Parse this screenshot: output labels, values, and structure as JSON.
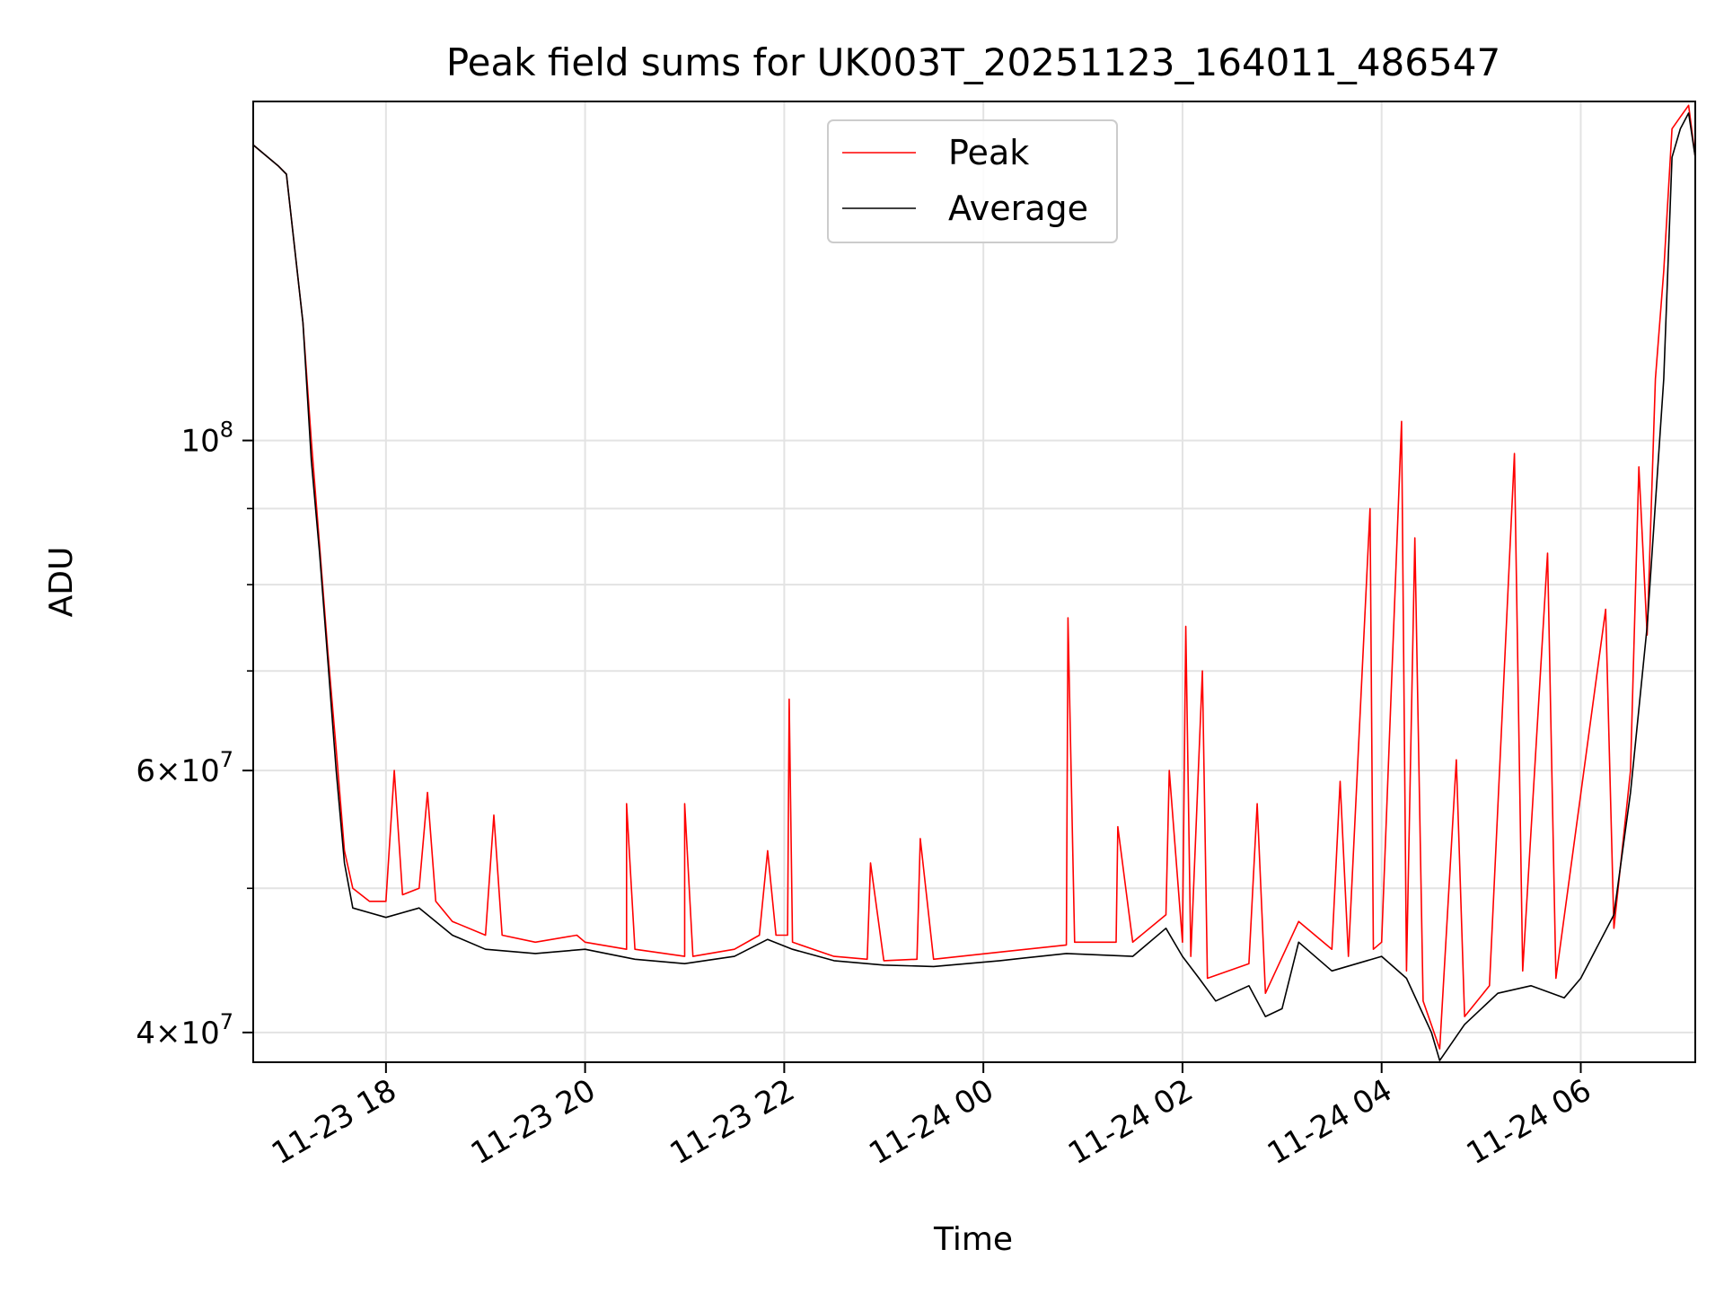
{
  "chart_data": {
    "type": "line",
    "title": "Peak field sums for UK003T_20251123_164011_486547",
    "xlabel": "Time",
    "ylabel": "ADU",
    "yscale": "log",
    "xlim": [
      "2025-11-23 16:40",
      "2025-11-24 07:09"
    ],
    "ylim": [
      38200000,
      169000000
    ],
    "grid": true,
    "legend_position": "top-center",
    "x_ticks": [
      {
        "label": "11-23 18",
        "t": "2025-11-23 18:00"
      },
      {
        "label": "11-23 20",
        "t": "2025-11-23 20:00"
      },
      {
        "label": "11-23 22",
        "t": "2025-11-23 22:00"
      },
      {
        "label": "11-24 00",
        "t": "2025-11-24 00:00"
      },
      {
        "label": "11-24 02",
        "t": "2025-11-24 02:00"
      },
      {
        "label": "11-24 04",
        "t": "2025-11-24 04:00"
      },
      {
        "label": "11-24 06",
        "t": "2025-11-24 06:00"
      }
    ],
    "y_ticks": [
      {
        "mantissa": "4",
        "exp": "7",
        "value": 40000000
      },
      {
        "mantissa": "6",
        "exp": "7",
        "value": 60000000
      },
      {
        "mantissa": "",
        "exp": "8",
        "value": 100000000
      }
    ],
    "y_minor_ticks": [
      50000000,
      70000000,
      80000000,
      90000000
    ],
    "series": [
      {
        "name": "Peak",
        "color": "#ff0000",
        "points": [
          [
            "2025-11-23 16:40",
            158000000
          ],
          [
            "2025-11-23 16:55",
            153000000
          ],
          [
            "2025-11-23 17:00",
            151000000
          ],
          [
            "2025-11-23 17:10",
            120000000
          ],
          [
            "2025-11-23 17:15",
            100000000
          ],
          [
            "2025-11-23 17:20",
            85000000
          ],
          [
            "2025-11-23 17:25",
            72000000
          ],
          [
            "2025-11-23 17:30",
            62000000
          ],
          [
            "2025-11-23 17:35",
            53000000
          ],
          [
            "2025-11-23 17:40",
            50000000
          ],
          [
            "2025-11-23 17:50",
            49000000
          ],
          [
            "2025-11-23 18:00",
            49000000
          ],
          [
            "2025-11-23 18:05",
            60000000
          ],
          [
            "2025-11-23 18:10",
            49500000
          ],
          [
            "2025-11-23 18:20",
            50000000
          ],
          [
            "2025-11-23 18:25",
            58000000
          ],
          [
            "2025-11-23 18:30",
            49000000
          ],
          [
            "2025-11-23 18:40",
            47500000
          ],
          [
            "2025-11-23 19:00",
            46500000
          ],
          [
            "2025-11-23 19:05",
            56000000
          ],
          [
            "2025-11-23 19:10",
            46500000
          ],
          [
            "2025-11-23 19:30",
            46000000
          ],
          [
            "2025-11-23 19:55",
            46500000
          ],
          [
            "2025-11-23 20:00",
            46000000
          ],
          [
            "2025-11-23 20:25",
            45500000
          ],
          [
            "2025-11-23 20:25",
            57000000
          ],
          [
            "2025-11-23 20:30",
            45500000
          ],
          [
            "2025-11-23 21:00",
            45000000
          ],
          [
            "2025-11-23 21:00",
            57000000
          ],
          [
            "2025-11-23 21:05",
            45000000
          ],
          [
            "2025-11-23 21:30",
            45500000
          ],
          [
            "2025-11-23 21:45",
            46500000
          ],
          [
            "2025-11-23 21:50",
            53000000
          ],
          [
            "2025-11-23 21:55",
            46500000
          ],
          [
            "2025-11-23 22:02",
            46500000
          ],
          [
            "2025-11-23 22:03",
            67000000
          ],
          [
            "2025-11-23 22:05",
            46000000
          ],
          [
            "2025-11-23 22:30",
            45000000
          ],
          [
            "2025-11-23 22:50",
            44800000
          ],
          [
            "2025-11-23 22:52",
            52000000
          ],
          [
            "2025-11-23 23:00",
            44700000
          ],
          [
            "2025-11-23 23:20",
            44800000
          ],
          [
            "2025-11-23 23:22",
            54000000
          ],
          [
            "2025-11-23 23:30",
            44800000
          ],
          [
            "2025-11-24 00:10",
            45300000
          ],
          [
            "2025-11-24 00:50",
            45800000
          ],
          [
            "2025-11-24 00:51",
            76000000
          ],
          [
            "2025-11-24 00:55",
            46000000
          ],
          [
            "2025-11-24 01:20",
            46000000
          ],
          [
            "2025-11-24 01:21",
            55000000
          ],
          [
            "2025-11-24 01:30",
            46000000
          ],
          [
            "2025-11-24 01:50",
            48000000
          ],
          [
            "2025-11-24 01:52",
            60000000
          ],
          [
            "2025-11-24 02:00",
            46000000
          ],
          [
            "2025-11-24 02:02",
            75000000
          ],
          [
            "2025-11-24 02:05",
            45000000
          ],
          [
            "2025-11-24 02:12",
            70000000
          ],
          [
            "2025-11-24 02:15",
            43500000
          ],
          [
            "2025-11-24 02:40",
            44500000
          ],
          [
            "2025-11-24 02:45",
            57000000
          ],
          [
            "2025-11-24 02:50",
            42500000
          ],
          [
            "2025-11-24 03:10",
            47500000
          ],
          [
            "2025-11-24 03:30",
            45500000
          ],
          [
            "2025-11-24 03:35",
            59000000
          ],
          [
            "2025-11-24 03:40",
            45000000
          ],
          [
            "2025-11-24 03:53",
            90000000
          ],
          [
            "2025-11-24 03:55",
            45500000
          ],
          [
            "2025-11-24 04:00",
            46000000
          ],
          [
            "2025-11-24 04:12",
            103000000
          ],
          [
            "2025-11-24 04:15",
            44000000
          ],
          [
            "2025-11-24 04:20",
            86000000
          ],
          [
            "2025-11-24 04:25",
            42000000
          ],
          [
            "2025-11-24 04:35",
            39000000
          ],
          [
            "2025-11-24 04:45",
            61000000
          ],
          [
            "2025-11-24 04:50",
            41000000
          ],
          [
            "2025-11-24 05:05",
            43000000
          ],
          [
            "2025-11-24 05:20",
            98000000
          ],
          [
            "2025-11-24 05:25",
            44000000
          ],
          [
            "2025-11-24 05:40",
            84000000
          ],
          [
            "2025-11-24 05:45",
            43500000
          ],
          [
            "2025-11-24 06:15",
            77000000
          ],
          [
            "2025-11-24 06:20",
            47000000
          ],
          [
            "2025-11-24 06:30",
            60000000
          ],
          [
            "2025-11-24 06:35",
            96000000
          ],
          [
            "2025-11-24 06:40",
            74000000
          ],
          [
            "2025-11-24 06:45",
            110000000
          ],
          [
            "2025-11-24 06:50",
            130000000
          ],
          [
            "2025-11-24 06:55",
            162000000
          ],
          [
            "2025-11-24 07:00",
            165000000
          ],
          [
            "2025-11-24 07:05",
            168000000
          ],
          [
            "2025-11-24 07:09",
            155000000
          ]
        ]
      },
      {
        "name": "Average",
        "color": "#000000",
        "points": [
          [
            "2025-11-23 16:40",
            158000000
          ],
          [
            "2025-11-23 16:55",
            153000000
          ],
          [
            "2025-11-23 17:00",
            151000000
          ],
          [
            "2025-11-23 17:10",
            120000000
          ],
          [
            "2025-11-23 17:15",
            97000000
          ],
          [
            "2025-11-23 17:20",
            84000000
          ],
          [
            "2025-11-23 17:25",
            71000000
          ],
          [
            "2025-11-23 17:30",
            60000000
          ],
          [
            "2025-11-23 17:35",
            52000000
          ],
          [
            "2025-11-23 17:40",
            48500000
          ],
          [
            "2025-11-23 18:00",
            47800000
          ],
          [
            "2025-11-23 18:20",
            48500000
          ],
          [
            "2025-11-23 18:40",
            46500000
          ],
          [
            "2025-11-23 19:00",
            45500000
          ],
          [
            "2025-11-23 19:30",
            45200000
          ],
          [
            "2025-11-23 20:00",
            45500000
          ],
          [
            "2025-11-23 20:30",
            44800000
          ],
          [
            "2025-11-23 21:00",
            44500000
          ],
          [
            "2025-11-23 21:30",
            45000000
          ],
          [
            "2025-11-23 21:50",
            46200000
          ],
          [
            "2025-11-23 22:05",
            45500000
          ],
          [
            "2025-11-23 22:30",
            44700000
          ],
          [
            "2025-11-23 23:00",
            44400000
          ],
          [
            "2025-11-23 23:30",
            44300000
          ],
          [
            "2025-11-24 00:10",
            44700000
          ],
          [
            "2025-11-24 00:50",
            45200000
          ],
          [
            "2025-11-24 01:30",
            45000000
          ],
          [
            "2025-11-24 01:50",
            47000000
          ],
          [
            "2025-11-24 02:00",
            45000000
          ],
          [
            "2025-11-24 02:10",
            43500000
          ],
          [
            "2025-11-24 02:20",
            42000000
          ],
          [
            "2025-11-24 02:40",
            43000000
          ],
          [
            "2025-11-24 02:50",
            41000000
          ],
          [
            "2025-11-24 03:00",
            41500000
          ],
          [
            "2025-11-24 03:10",
            46000000
          ],
          [
            "2025-11-24 03:30",
            44000000
          ],
          [
            "2025-11-24 04:00",
            45000000
          ],
          [
            "2025-11-24 04:15",
            43500000
          ],
          [
            "2025-11-24 04:30",
            40000000
          ],
          [
            "2025-11-24 04:35",
            38300000
          ],
          [
            "2025-11-24 04:50",
            40500000
          ],
          [
            "2025-11-24 05:10",
            42500000
          ],
          [
            "2025-11-24 05:30",
            43000000
          ],
          [
            "2025-11-24 05:50",
            42200000
          ],
          [
            "2025-11-24 06:00",
            43500000
          ],
          [
            "2025-11-24 06:20",
            48000000
          ],
          [
            "2025-11-24 06:30",
            58000000
          ],
          [
            "2025-11-24 06:40",
            75000000
          ],
          [
            "2025-11-24 06:50",
            110000000
          ],
          [
            "2025-11-24 06:55",
            155000000
          ],
          [
            "2025-11-24 07:00",
            162000000
          ],
          [
            "2025-11-24 07:05",
            166000000
          ],
          [
            "2025-11-24 07:09",
            155000000
          ]
        ]
      }
    ]
  }
}
